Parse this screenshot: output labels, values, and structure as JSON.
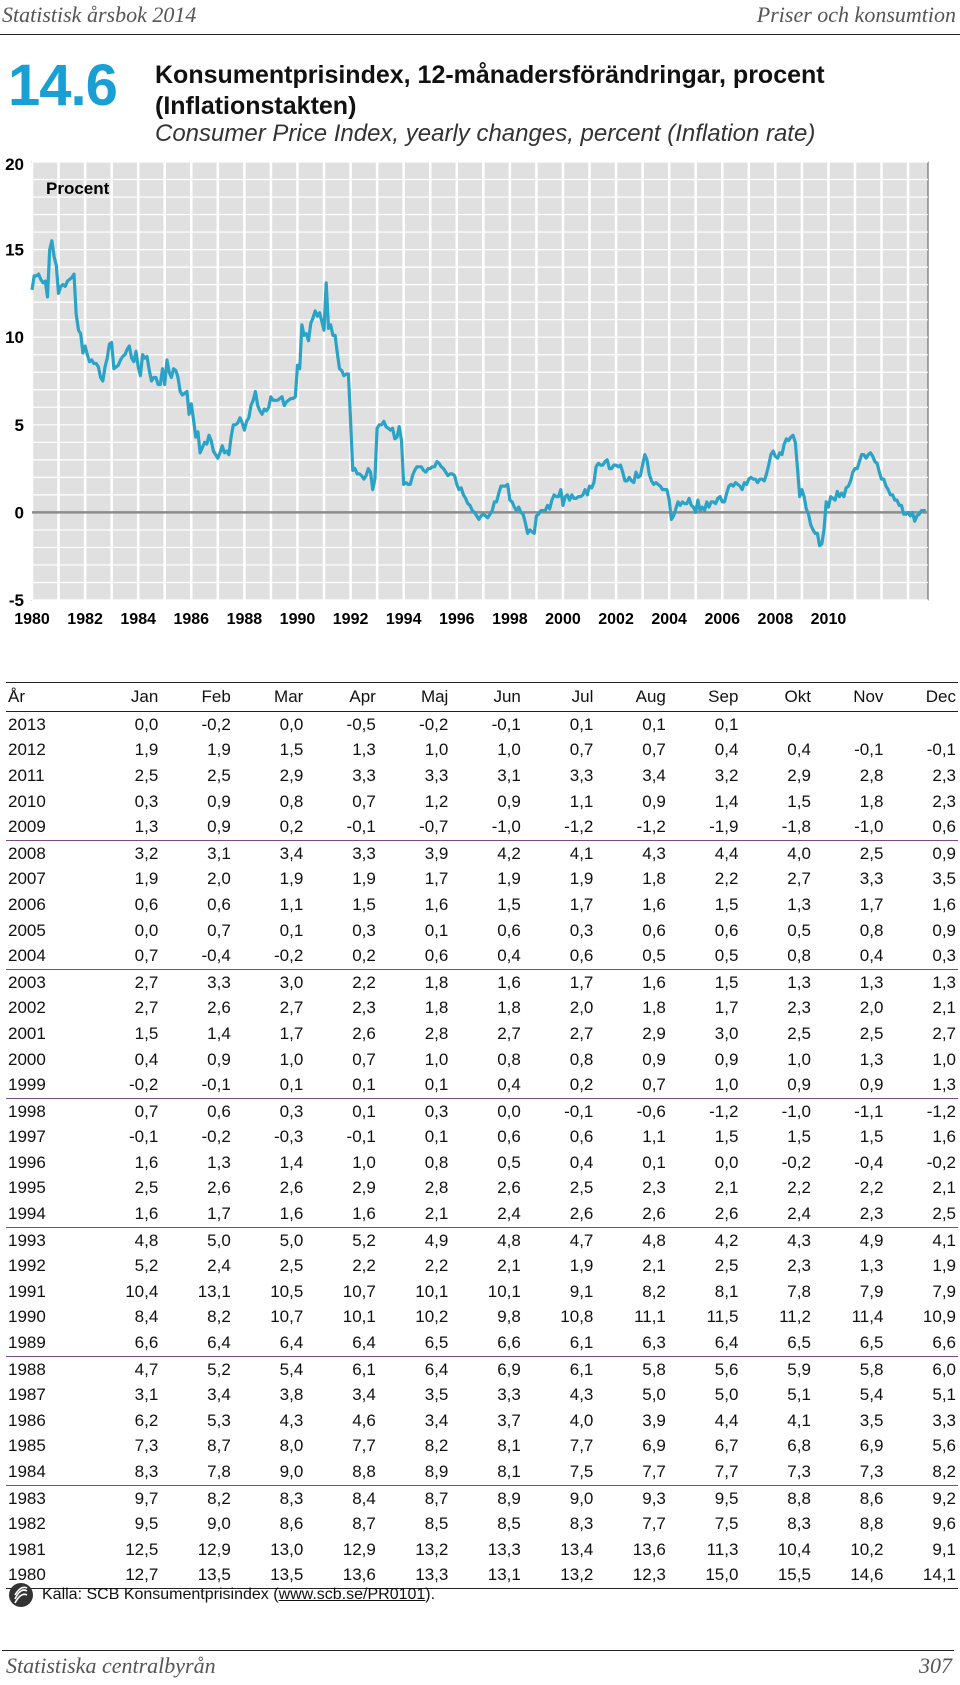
{
  "header": {
    "left": "Statistisk årsbok 2014",
    "right": "Priser och konsumtion"
  },
  "table_number": "14.6",
  "title_sv": "Konsumentprisindex, 12-månadersförändringar, procent (Inflationstakten)",
  "title_en": "Consumer Price Index, yearly changes, percent (Inflation rate)",
  "chart_data": {
    "type": "line",
    "ylabel": "Procent",
    "ylim": [
      -5,
      20
    ],
    "yticks": [
      -5,
      0,
      5,
      10,
      15,
      20
    ],
    "xlim": [
      1980,
      2013.75
    ],
    "xticks": [
      1980,
      1982,
      1984,
      1986,
      1988,
      1990,
      1992,
      1994,
      1996,
      1998,
      2000,
      2002,
      2004,
      2006,
      2008,
      2010
    ],
    "grid": true,
    "line_color": "#2aa3c6",
    "zero_line_color": "#8c8c8c",
    "series": [
      {
        "years": [
          1980,
          1981,
          1982,
          1983,
          1984,
          1985,
          1986,
          1987,
          1988,
          1989,
          1990,
          1991,
          1992,
          1993,
          1994,
          1995,
          1996,
          1997,
          1998,
          1999,
          2000,
          2001,
          2002,
          2003,
          2004,
          2005,
          2006,
          2007,
          2008,
          2009,
          2010,
          2011,
          2012,
          2013
        ]
      }
    ]
  },
  "table": {
    "headers": [
      "År",
      "Jan",
      "Feb",
      "Mar",
      "Apr",
      "Maj",
      "Jun",
      "Jul",
      "Aug",
      "Sep",
      "Okt",
      "Nov",
      "Dec"
    ],
    "rows": [
      [
        "2013",
        "0,0",
        "-0,2",
        "0,0",
        "-0,5",
        "-0,2",
        "-0,1",
        "0,1",
        "0,1",
        "0,1",
        "",
        "",
        ""
      ],
      [
        "2012",
        "1,9",
        "1,9",
        "1,5",
        "1,3",
        "1,0",
        "1,0",
        "0,7",
        "0,7",
        "0,4",
        "0,4",
        "-0,1",
        "-0,1"
      ],
      [
        "2011",
        "2,5",
        "2,5",
        "2,9",
        "3,3",
        "3,3",
        "3,1",
        "3,3",
        "3,4",
        "3,2",
        "2,9",
        "2,8",
        "2,3"
      ],
      [
        "2010",
        "0,3",
        "0,9",
        "0,8",
        "0,7",
        "1,2",
        "0,9",
        "1,1",
        "0,9",
        "1,4",
        "1,5",
        "1,8",
        "2,3"
      ],
      [
        "2009",
        "1,3",
        "0,9",
        "0,2",
        "-0,1",
        "-0,7",
        "-1,0",
        "-1,2",
        "-1,2",
        "-1,9",
        "-1,8",
        "-1,0",
        "0,6"
      ],
      [
        "2008",
        "3,2",
        "3,1",
        "3,4",
        "3,3",
        "3,9",
        "4,2",
        "4,1",
        "4,3",
        "4,4",
        "4,0",
        "2,5",
        "0,9"
      ],
      [
        "2007",
        "1,9",
        "2,0",
        "1,9",
        "1,9",
        "1,7",
        "1,9",
        "1,9",
        "1,8",
        "2,2",
        "2,7",
        "3,3",
        "3,5"
      ],
      [
        "2006",
        "0,6",
        "0,6",
        "1,1",
        "1,5",
        "1,6",
        "1,5",
        "1,7",
        "1,6",
        "1,5",
        "1,3",
        "1,7",
        "1,6"
      ],
      [
        "2005",
        "0,0",
        "0,7",
        "0,1",
        "0,3",
        "0,1",
        "0,6",
        "0,3",
        "0,6",
        "0,6",
        "0,5",
        "0,8",
        "0,9"
      ],
      [
        "2004",
        "0,7",
        "-0,4",
        "-0,2",
        "0,2",
        "0,6",
        "0,4",
        "0,6",
        "0,5",
        "0,5",
        "0,8",
        "0,4",
        "0,3"
      ],
      [
        "2003",
        "2,7",
        "3,3",
        "3,0",
        "2,2",
        "1,8",
        "1,6",
        "1,7",
        "1,6",
        "1,5",
        "1,3",
        "1,3",
        "1,3"
      ],
      [
        "2002",
        "2,7",
        "2,6",
        "2,7",
        "2,3",
        "1,8",
        "1,8",
        "2,0",
        "1,8",
        "1,7",
        "2,3",
        "2,0",
        "2,1"
      ],
      [
        "2001",
        "1,5",
        "1,4",
        "1,7",
        "2,6",
        "2,8",
        "2,7",
        "2,7",
        "2,9",
        "3,0",
        "2,5",
        "2,5",
        "2,7"
      ],
      [
        "2000",
        "0,4",
        "0,9",
        "1,0",
        "0,7",
        "1,0",
        "0,8",
        "0,8",
        "0,9",
        "0,9",
        "1,0",
        "1,3",
        "1,0"
      ],
      [
        "1999",
        "-0,2",
        "-0,1",
        "0,1",
        "0,1",
        "0,1",
        "0,4",
        "0,2",
        "0,7",
        "1,0",
        "0,9",
        "0,9",
        "1,3"
      ],
      [
        "1998",
        "0,7",
        "0,6",
        "0,3",
        "0,1",
        "0,3",
        "0,0",
        "-0,1",
        "-0,6",
        "-1,2",
        "-1,0",
        "-1,1",
        "-1,2"
      ],
      [
        "1997",
        "-0,1",
        "-0,2",
        "-0,3",
        "-0,1",
        "0,1",
        "0,6",
        "0,6",
        "1,1",
        "1,5",
        "1,5",
        "1,5",
        "1,6"
      ],
      [
        "1996",
        "1,6",
        "1,3",
        "1,4",
        "1,0",
        "0,8",
        "0,5",
        "0,4",
        "0,1",
        "0,0",
        "-0,2",
        "-0,4",
        "-0,2"
      ],
      [
        "1995",
        "2,5",
        "2,6",
        "2,6",
        "2,9",
        "2,8",
        "2,6",
        "2,5",
        "2,3",
        "2,1",
        "2,2",
        "2,2",
        "2,1"
      ],
      [
        "1994",
        "1,6",
        "1,7",
        "1,6",
        "1,6",
        "2,1",
        "2,4",
        "2,6",
        "2,6",
        "2,6",
        "2,4",
        "2,3",
        "2,5"
      ],
      [
        "1993",
        "4,8",
        "5,0",
        "5,0",
        "5,2",
        "4,9",
        "4,8",
        "4,7",
        "4,8",
        "4,2",
        "4,3",
        "4,9",
        "4,1"
      ],
      [
        "1992",
        "5,2",
        "2,4",
        "2,5",
        "2,2",
        "2,2",
        "2,1",
        "1,9",
        "2,1",
        "2,5",
        "2,3",
        "1,3",
        "1,9"
      ],
      [
        "1991",
        "10,4",
        "13,1",
        "10,5",
        "10,7",
        "10,1",
        "10,1",
        "9,1",
        "8,2",
        "8,1",
        "7,8",
        "7,9",
        "7,9"
      ],
      [
        "1990",
        "8,4",
        "8,2",
        "10,7",
        "10,1",
        "10,2",
        "9,8",
        "10,8",
        "11,1",
        "11,5",
        "11,2",
        "11,4",
        "10,9"
      ],
      [
        "1989",
        "6,6",
        "6,4",
        "6,4",
        "6,4",
        "6,5",
        "6,6",
        "6,1",
        "6,3",
        "6,4",
        "6,5",
        "6,5",
        "6,6"
      ],
      [
        "1988",
        "4,7",
        "5,2",
        "5,4",
        "6,1",
        "6,4",
        "6,9",
        "6,1",
        "5,8",
        "5,6",
        "5,9",
        "5,8",
        "6,0"
      ],
      [
        "1987",
        "3,1",
        "3,4",
        "3,8",
        "3,4",
        "3,5",
        "3,3",
        "4,3",
        "5,0",
        "5,0",
        "5,1",
        "5,4",
        "5,1"
      ],
      [
        "1986",
        "6,2",
        "5,3",
        "4,3",
        "4,6",
        "3,4",
        "3,7",
        "4,0",
        "3,9",
        "4,4",
        "4,1",
        "3,5",
        "3,3"
      ],
      [
        "1985",
        "7,3",
        "8,7",
        "8,0",
        "7,7",
        "8,2",
        "8,1",
        "7,7",
        "6,9",
        "6,7",
        "6,8",
        "6,9",
        "5,6"
      ],
      [
        "1984",
        "8,3",
        "7,8",
        "9,0",
        "8,8",
        "8,9",
        "8,1",
        "7,5",
        "7,7",
        "7,7",
        "7,3",
        "7,3",
        "8,2"
      ],
      [
        "1983",
        "9,7",
        "8,2",
        "8,3",
        "8,4",
        "8,7",
        "8,9",
        "9,0",
        "9,3",
        "9,5",
        "8,8",
        "8,6",
        "9,2"
      ],
      [
        "1982",
        "9,5",
        "9,0",
        "8,6",
        "8,7",
        "8,5",
        "8,5",
        "8,3",
        "7,7",
        "7,5",
        "8,3",
        "8,8",
        "9,6"
      ],
      [
        "1981",
        "12,5",
        "12,9",
        "13,0",
        "12,9",
        "13,2",
        "13,3",
        "13,4",
        "13,6",
        "11,3",
        "10,4",
        "10,2",
        "9,1"
      ],
      [
        "1980",
        "12,7",
        "13,5",
        "13,5",
        "13,6",
        "13,3",
        "13,1",
        "13,2",
        "12,3",
        "15,0",
        "15,5",
        "14,6",
        "14,1"
      ]
    ]
  },
  "source": {
    "prefix": "Källa: SCB Konsumentprisindex (",
    "link": "www.scb.se/PR0101",
    "suffix": ")."
  },
  "footer": {
    "left": "Statistiska centralbyrån",
    "right": "307"
  }
}
